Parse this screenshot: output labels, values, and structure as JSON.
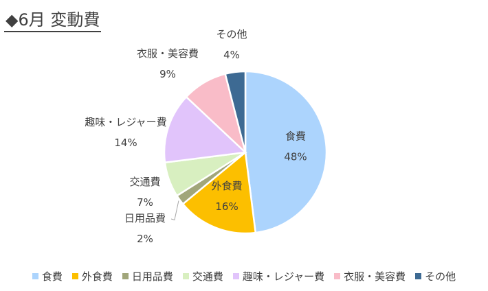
{
  "chart_data": {
    "type": "pie",
    "title": "◆6月 変動費",
    "categories": [
      "食費",
      "外食費",
      "日用品費",
      "交通費",
      "趣味・レジャー費",
      "衣服・美容費",
      "その他"
    ],
    "values": [
      48,
      16,
      2,
      7,
      14,
      9,
      4
    ],
    "value_labels": [
      "48%",
      "16%",
      "2%",
      "7%",
      "14%",
      "9%",
      "4%"
    ],
    "colors": [
      "#acd4fd",
      "#fcbf00",
      "#a1a67a",
      "#d8efc0",
      "#e1c4fb",
      "#f9bcc8",
      "#3d6a93"
    ],
    "start_angle_deg": 0,
    "direction": "clockwise",
    "legend": "bottom"
  }
}
